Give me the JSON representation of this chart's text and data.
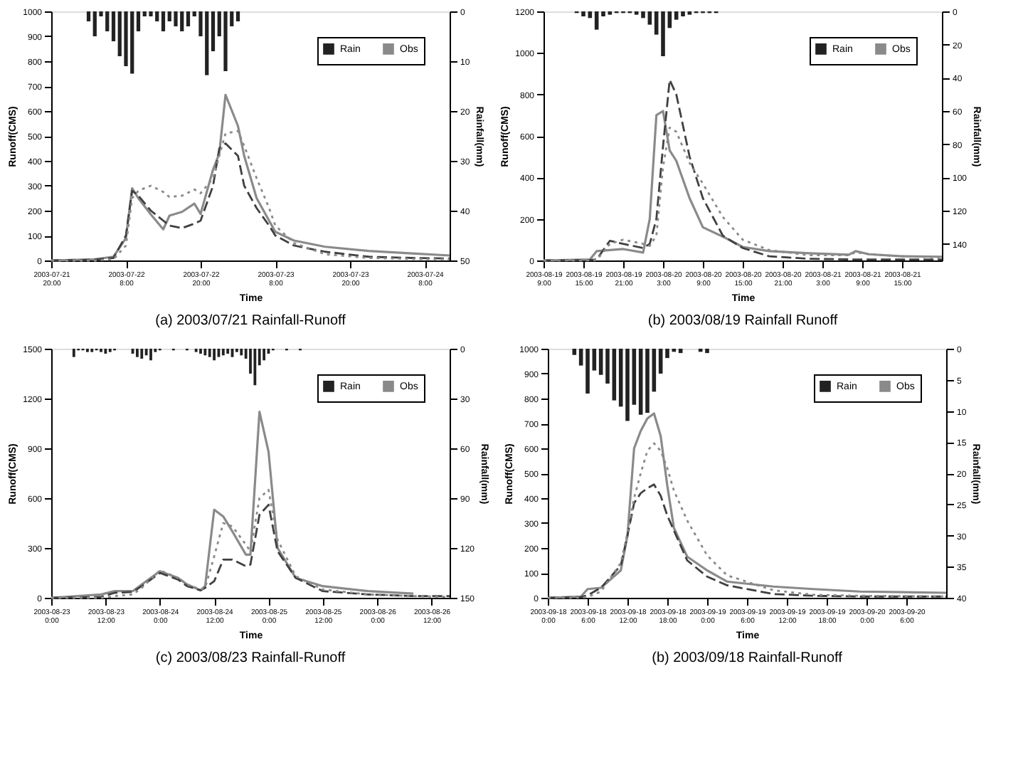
{
  "chart_data": [
    {
      "type": "line",
      "title": "(a) 2003/07/21 Rainfall-Runoff",
      "xlabel": "Time",
      "ylabel": "Runoff(CMS)",
      "y2label": "Rainfall(mm)",
      "legend": "top right",
      "xlim": [
        "2003-07-21T20:00",
        "2003-07-24T12:00"
      ],
      "xticks": [
        {
          "value": "2003-07-21T20:00",
          "label": "2003-07-21 20:00"
        },
        {
          "value": "2003-07-22T08:00",
          "label": "2003-07-22 8:00"
        },
        {
          "value": "2003-07-22T20:00",
          "label": "2003-07-22 20:00"
        },
        {
          "value": "2003-07-23T08:00",
          "label": "2003-07-23 8:00"
        },
        {
          "value": "2003-07-23T20:00",
          "label": "2003-07-23 20:00"
        },
        {
          "value": "2003-07-24T08:00",
          "label": "2003-07-24 8:00"
        }
      ],
      "ylim": [
        0,
        1000
      ],
      "yticks": [
        0,
        100,
        200,
        300,
        400,
        500,
        600,
        700,
        800,
        900,
        1000
      ],
      "y2lim": [
        50,
        0
      ],
      "y2ticks": [
        0,
        10,
        20,
        30,
        40,
        50
      ],
      "x": [
        "2003-07-21T20:00",
        "2003-07-22T03:00",
        "2003-07-22T06:00",
        "2003-07-22T08:00",
        "2003-07-22T09:00",
        "2003-07-22T10:00",
        "2003-07-22T12:00",
        "2003-07-22T14:00",
        "2003-07-22T15:00",
        "2003-07-22T17:00",
        "2003-07-22T19:00",
        "2003-07-22T20:00",
        "2003-07-22T22:00",
        "2003-07-22T23:00",
        "2003-07-23T00:00",
        "2003-07-23T02:00",
        "2003-07-23T03:00",
        "2003-07-23T05:00",
        "2003-07-23T07:00",
        "2003-07-23T08:00",
        "2003-07-23T11:00",
        "2003-07-23T16:00",
        "2003-07-23T23:00",
        "2003-07-24T06:00",
        "2003-07-24T12:00"
      ],
      "series": [
        {
          "name": "Rain",
          "type": "bar",
          "axis": "y2",
          "color": "#222222",
          "x": [
            "2003-07-22T02:00",
            "2003-07-22T03:00",
            "2003-07-22T04:00",
            "2003-07-22T05:00",
            "2003-07-22T06:00",
            "2003-07-22T07:00",
            "2003-07-22T08:00",
            "2003-07-22T09:00",
            "2003-07-22T10:00",
            "2003-07-22T11:00",
            "2003-07-22T12:00",
            "2003-07-22T13:00",
            "2003-07-22T14:00",
            "2003-07-22T15:00",
            "2003-07-22T16:00",
            "2003-07-22T17:00",
            "2003-07-22T18:00",
            "2003-07-22T19:00",
            "2003-07-22T20:00",
            "2003-07-22T21:00",
            "2003-07-22T22:00",
            "2003-07-22T23:00",
            "2003-07-23T00:00",
            "2003-07-23T01:00",
            "2003-07-23T02:00"
          ],
          "values": [
            2,
            5,
            1,
            4,
            6,
            9,
            11,
            12.5,
            4,
            1,
            1,
            2,
            4,
            2,
            3,
            4,
            3,
            1,
            5,
            12.8,
            8,
            5,
            12,
            3,
            2
          ]
        },
        {
          "name": "Obs",
          "axis": "y",
          "color": "#8a8a8a",
          "line_style": "solid",
          "values": [
            0,
            5,
            15,
            90,
            290,
            250,
            185,
            125,
            180,
            195,
            228,
            187,
            365,
            430,
            665,
            540,
            420,
            250,
            160,
            115,
            80,
            55,
            38,
            28,
            20
          ]
        },
        {
          "axis": "y",
          "color": "#404040",
          "line_style": "dashed",
          "values": [
            0,
            3,
            10,
            100,
            280,
            260,
            200,
            160,
            140,
            130,
            148,
            160,
            300,
            450,
            470,
            420,
            300,
            210,
            140,
            100,
            60,
            35,
            15,
            10,
            8
          ]
        },
        {
          "axis": "y",
          "color": "#8a8a8a",
          "line_style": "dotted",
          "values": [
            0,
            0,
            5,
            60,
            250,
            280,
            300,
            275,
            255,
            260,
            285,
            270,
            330,
            420,
            510,
            520,
            460,
            330,
            210,
            140,
            70,
            25,
            10,
            6,
            5
          ]
        }
      ]
    },
    {
      "type": "line",
      "title": "(b) 2003/08/19 Rainfall Runoff",
      "xlabel": "Time",
      "ylabel": "Runoff(CMS)",
      "y2label": "Rainfall(mm)",
      "legend": "top right",
      "xlim": [
        "2003-08-19T09:00",
        "2003-08-21T21:00"
      ],
      "xticks": [
        {
          "value": "2003-08-19T09:00",
          "label": "2003-08-19 9:00"
        },
        {
          "value": "2003-08-19T15:00",
          "label": "2003-08-19 15:00"
        },
        {
          "value": "2003-08-19T21:00",
          "label": "2003-08-19 21:00"
        },
        {
          "value": "2003-08-20T03:00",
          "label": "2003-08-20 3:00"
        },
        {
          "value": "2003-08-20T09:00",
          "label": "2003-08-20 9:00"
        },
        {
          "value": "2003-08-20T15:00",
          "label": "2003-08-20 15:00"
        },
        {
          "value": "2003-08-20T21:00",
          "label": "2003-08-20 21:00"
        },
        {
          "value": "2003-08-21T03:00",
          "label": "2003-08-21 3:00"
        },
        {
          "value": "2003-08-21T09:00",
          "label": "2003-08-21 9:00"
        },
        {
          "value": "2003-08-21T15:00",
          "label": "2003-08-21 15:00"
        }
      ],
      "ylim": [
        0,
        1200
      ],
      "yticks": [
        0,
        200,
        400,
        600,
        800,
        1000,
        1200
      ],
      "y2lim": [
        150,
        0
      ],
      "y2ticks": [
        0,
        20,
        40,
        60,
        80,
        100,
        120,
        140
      ],
      "x": [
        "2003-08-19T09:00",
        "2003-08-19T16:00",
        "2003-08-19T17:00",
        "2003-08-19T19:00",
        "2003-08-19T21:00",
        "2003-08-20T00:00",
        "2003-08-20T01:00",
        "2003-08-20T02:00",
        "2003-08-20T03:00",
        "2003-08-20T04:00",
        "2003-08-20T05:00",
        "2003-08-20T07:00",
        "2003-08-20T09:00",
        "2003-08-20T12:00",
        "2003-08-20T15:00",
        "2003-08-20T19:00",
        "2003-08-21T01:00",
        "2003-08-21T07:00",
        "2003-08-21T08:00",
        "2003-08-21T10:00",
        "2003-08-21T15:00",
        "2003-08-21T21:00"
      ],
      "series": [
        {
          "name": "Rain",
          "type": "bar",
          "axis": "y2",
          "color": "#222222",
          "x": [
            "2003-08-19T14:00",
            "2003-08-19T15:00",
            "2003-08-19T16:00",
            "2003-08-19T17:00",
            "2003-08-19T18:00",
            "2003-08-19T19:00",
            "2003-08-19T20:00",
            "2003-08-19T21:00",
            "2003-08-19T22:00",
            "2003-08-19T23:00",
            "2003-08-20T00:00",
            "2003-08-20T01:00",
            "2003-08-20T02:00",
            "2003-08-20T03:00",
            "2003-08-20T04:00",
            "2003-08-20T05:00",
            "2003-08-20T06:00",
            "2003-08-20T07:00",
            "2003-08-20T08:00",
            "2003-08-20T09:00",
            "2003-08-20T10:00",
            "2003-08-20T11:00"
          ],
          "values": [
            1,
            3,
            4,
            11,
            3,
            2,
            1,
            1,
            1,
            2,
            4,
            8,
            14,
            27,
            10,
            5,
            3,
            2,
            1,
            1,
            1,
            1
          ]
        },
        {
          "name": "Obs",
          "axis": "y",
          "color": "#8a8a8a",
          "line_style": "solid",
          "values": [
            0,
            5,
            45,
            50,
            55,
            38,
            200,
            700,
            720,
            530,
            480,
            300,
            160,
            115,
            65,
            45,
            35,
            28,
            45,
            30,
            20,
            18
          ]
        },
        {
          "axis": "y",
          "color": "#404040",
          "line_style": "dashed",
          "values": [
            0,
            2,
            5,
            95,
            80,
            60,
            80,
            200,
            550,
            870,
            800,
            500,
            300,
            120,
            60,
            20,
            8,
            5,
            5,
            5,
            5,
            5
          ]
        },
        {
          "axis": "y",
          "color": "#8a8a8a",
          "line_style": "dotted",
          "values": [
            0,
            1,
            2,
            80,
            100,
            80,
            70,
            120,
            450,
            640,
            620,
            470,
            370,
            210,
            100,
            50,
            25,
            25,
            40,
            30,
            20,
            15
          ]
        }
      ]
    },
    {
      "type": "line",
      "title": "(c) 2003/08/23 Rainfall-Runoff",
      "xlabel": "Time",
      "ylabel": "Runoff(CMS)",
      "y2label": "Rainfall(mm)",
      "legend": "top right",
      "xlim": [
        "2003-08-23T00:00",
        "2003-08-26T16:00"
      ],
      "xticks": [
        {
          "value": "2003-08-23T00:00",
          "label": "2003-08-23 0:00"
        },
        {
          "value": "2003-08-23T12:00",
          "label": "2003-08-23 12:00"
        },
        {
          "value": "2003-08-24T00:00",
          "label": "2003-08-24 0:00"
        },
        {
          "value": "2003-08-24T12:00",
          "label": "2003-08-24 12:00"
        },
        {
          "value": "2003-08-25T00:00",
          "label": "2003-08-25 0:00"
        },
        {
          "value": "2003-08-25T12:00",
          "label": "2003-08-25 12:00"
        },
        {
          "value": "2003-08-26T00:00",
          "label": "2003-08-26 0:00"
        },
        {
          "value": "2003-08-26T12:00",
          "label": "2003-08-26 12:00"
        }
      ],
      "ylim": [
        0,
        1500
      ],
      "yticks": [
        0,
        300,
        600,
        900,
        1200,
        1500
      ],
      "y2lim": [
        150,
        0
      ],
      "y2ticks": [
        0,
        30,
        60,
        90,
        120,
        150
      ],
      "x": [
        "2003-08-23T00:00",
        "2003-08-23T11:00",
        "2003-08-23T14:00",
        "2003-08-23T18:00",
        "2003-08-23T20:00",
        "2003-08-24T00:00",
        "2003-08-24T04:00",
        "2003-08-24T06:00",
        "2003-08-24T09:00",
        "2003-08-24T10:00",
        "2003-08-24T12:00",
        "2003-08-24T14:00",
        "2003-08-24T16:00",
        "2003-08-24T19:00",
        "2003-08-24T20:00",
        "2003-08-24T22:00",
        "2003-08-25T00:00",
        "2003-08-25T02:00",
        "2003-08-25T06:00",
        "2003-08-25T12:00",
        "2003-08-25T22:00",
        "2003-08-26T08:00",
        "2003-08-26T16:00"
      ],
      "series": [
        {
          "name": "Rain",
          "type": "bar",
          "axis": "y2",
          "color": "#222222",
          "x": [
            "2003-08-23T05:00",
            "2003-08-23T06:00",
            "2003-08-23T07:00",
            "2003-08-23T08:00",
            "2003-08-23T09:00",
            "2003-08-23T10:00",
            "2003-08-23T11:00",
            "2003-08-23T12:00",
            "2003-08-23T13:00",
            "2003-08-23T14:00",
            "2003-08-23T18:00",
            "2003-08-23T19:00",
            "2003-08-23T20:00",
            "2003-08-23T21:00",
            "2003-08-23T22:00",
            "2003-08-23T23:00",
            "2003-08-24T00:00",
            "2003-08-24T03:00",
            "2003-08-24T06:00",
            "2003-08-24T08:00",
            "2003-08-24T09:00",
            "2003-08-24T10:00",
            "2003-08-24T11:00",
            "2003-08-24T12:00",
            "2003-08-24T13:00",
            "2003-08-24T14:00",
            "2003-08-24T15:00",
            "2003-08-24T16:00",
            "2003-08-24T17:00",
            "2003-08-24T18:00",
            "2003-08-24T19:00",
            "2003-08-24T20:00",
            "2003-08-24T21:00",
            "2003-08-24T22:00",
            "2003-08-24T23:00",
            "2003-08-25T00:00",
            "2003-08-25T01:00",
            "2003-08-25T04:00",
            "2003-08-25T07:00"
          ],
          "values": [
            5,
            1,
            1,
            2,
            2,
            1,
            2,
            3,
            2,
            1,
            3,
            5,
            6,
            4,
            7,
            2,
            1,
            1,
            1,
            2,
            3,
            4,
            5,
            7,
            5,
            4,
            3,
            5,
            2,
            4,
            6,
            15,
            22,
            10,
            7,
            3,
            1,
            1,
            1
          ]
        },
        {
          "name": "Obs",
          "axis": "y",
          "color": "#8a8a8a",
          "line_style": "solid",
          "values": [
            0,
            20,
            40,
            40,
            80,
            160,
            120,
            80,
            45,
            70,
            530,
            490,
            400,
            260,
            260,
            1120,
            880,
            300,
            120,
            70,
            40,
            25,
            null
          ]
        },
        {
          "axis": "y",
          "color": "#404040",
          "line_style": "dashed",
          "values": [
            0,
            5,
            30,
            35,
            70,
            150,
            110,
            70,
            45,
            60,
            100,
            230,
            230,
            190,
            200,
            500,
            560,
            280,
            120,
            40,
            20,
            10,
            10
          ]
        },
        {
          "axis": "y",
          "color": "#8a8a8a",
          "line_style": "dotted",
          "values": [
            0,
            0,
            10,
            20,
            60,
            165,
            120,
            80,
            50,
            60,
            250,
            450,
            430,
            320,
            280,
            600,
            650,
            350,
            130,
            50,
            20,
            10,
            5
          ]
        }
      ]
    },
    {
      "type": "line",
      "title": "(b) 2003/09/18 Rainfall-Runoff",
      "xlabel": "Time",
      "ylabel": "Runoff(CMS)",
      "y2label": "Rainfall(mm)",
      "legend": "top right",
      "xlim": [
        "2003-09-18T00:00",
        "2003-09-20T12:00"
      ],
      "xticks": [
        {
          "value": "2003-09-18T00:00",
          "label": "2003-09-18 0:00"
        },
        {
          "value": "2003-09-18T06:00",
          "label": "2003-09-18 6:00"
        },
        {
          "value": "2003-09-18T12:00",
          "label": "2003-09-18 12:00"
        },
        {
          "value": "2003-09-18T18:00",
          "label": "2003-09-18 18:00"
        },
        {
          "value": "2003-09-19T00:00",
          "label": "2003-09-19 0:00"
        },
        {
          "value": "2003-09-19T06:00",
          "label": "2003-09-19 6:00"
        },
        {
          "value": "2003-09-19T12:00",
          "label": "2003-09-19 12:00"
        },
        {
          "value": "2003-09-19T18:00",
          "label": "2003-09-19 18:00"
        },
        {
          "value": "2003-09-20T00:00",
          "label": "2003-09-20 0:00"
        },
        {
          "value": "2003-09-20T06:00",
          "label": "2003-09-20 6:00"
        }
      ],
      "ylim": [
        0,
        1000
      ],
      "yticks": [
        0,
        100,
        200,
        300,
        400,
        500,
        600,
        700,
        800,
        900,
        1000
      ],
      "y2lim": [
        40,
        0
      ],
      "y2ticks": [
        0,
        5,
        10,
        15,
        20,
        25,
        30,
        35,
        40
      ],
      "x": [
        "2003-09-18T00:00",
        "2003-09-18T05:00",
        "2003-09-18T06:00",
        "2003-09-18T08:00",
        "2003-09-18T11:00",
        "2003-09-18T12:00",
        "2003-09-18T13:00",
        "2003-09-18T14:00",
        "2003-09-18T15:00",
        "2003-09-18T16:00",
        "2003-09-18T17:00",
        "2003-09-18T18:00",
        "2003-09-18T19:00",
        "2003-09-18T21:00",
        "2003-09-19T00:00",
        "2003-09-19T03:00",
        "2003-09-19T10:00",
        "2003-09-19T16:00",
        "2003-09-19T23:00",
        "2003-09-20T12:00"
      ],
      "series": [
        {
          "name": "Rain",
          "type": "bar",
          "axis": "y2",
          "color": "#222222",
          "x": [
            "2003-09-18T04:00",
            "2003-09-18T05:00",
            "2003-09-18T06:00",
            "2003-09-18T07:00",
            "2003-09-18T08:00",
            "2003-09-18T09:00",
            "2003-09-18T10:00",
            "2003-09-18T11:00",
            "2003-09-18T12:00",
            "2003-09-18T13:00",
            "2003-09-18T14:00",
            "2003-09-18T15:00",
            "2003-09-18T16:00",
            "2003-09-18T17:00",
            "2003-09-18T18:00",
            "2003-09-18T19:00",
            "2003-09-18T20:00",
            "2003-09-18T23:00",
            "2003-09-19T00:00"
          ],
          "values": [
            1,
            2.7,
            7.2,
            3.5,
            4.2,
            5.6,
            8.3,
            9.3,
            11.6,
            9,
            10.6,
            10.3,
            6.9,
            4,
            1.5,
            0.5,
            0.7,
            0.5,
            0.7
          ]
        },
        {
          "name": "Obs",
          "axis": "y",
          "color": "#8a8a8a",
          "line_style": "solid",
          "values": [
            0,
            5,
            35,
            40,
            110,
            250,
            600,
            670,
            720,
            740,
            650,
            450,
            280,
            165,
            110,
            65,
            45,
            35,
            25,
            20
          ]
        },
        {
          "axis": "y",
          "color": "#404040",
          "line_style": "dashed",
          "values": [
            0,
            3,
            10,
            40,
            130,
            250,
            380,
            420,
            440,
            455,
            410,
            330,
            270,
            150,
            85,
            50,
            15,
            8,
            5,
            5
          ]
        },
        {
          "axis": "y",
          "color": "#8a8a8a",
          "line_style": "dotted",
          "values": [
            0,
            1,
            3,
            25,
            140,
            260,
            400,
            500,
            590,
            620,
            590,
            520,
            430,
            310,
            170,
            90,
            30,
            12,
            8,
            5
          ]
        }
      ]
    }
  ]
}
